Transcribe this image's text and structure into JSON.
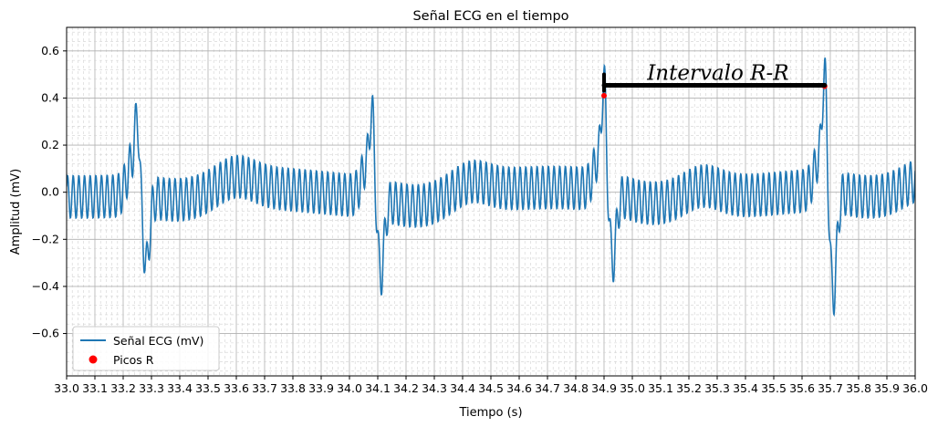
{
  "chart_data": {
    "type": "line",
    "title": "Señal ECG en el tiempo",
    "xlabel": "Tiempo (s)",
    "ylabel": "Amplitud (mV)",
    "xlim": [
      33.0,
      36.0
    ],
    "ylim": [
      -0.78,
      0.7
    ],
    "xticks": [
      "33.0",
      "33.1",
      "33.2",
      "33.3",
      "33.4",
      "33.5",
      "33.6",
      "33.7",
      "33.8",
      "33.9",
      "34.0",
      "34.1",
      "34.2",
      "34.3",
      "34.4",
      "34.5",
      "34.6",
      "34.7",
      "34.8",
      "34.9",
      "35.0",
      "35.1",
      "35.2",
      "35.3",
      "35.4",
      "35.5",
      "35.6",
      "35.7",
      "35.8",
      "35.9",
      "36.0"
    ],
    "yticks": [
      "0.6",
      "0.4",
      "0.2",
      "0.0",
      "−0.2",
      "−0.4",
      "−0.6"
    ],
    "ytick_values": [
      0.6,
      0.4,
      0.2,
      0.0,
      -0.2,
      -0.4,
      -0.6
    ],
    "grid": true,
    "minor_grid": true,
    "legend_position": "lower-left",
    "series": [
      {
        "name": "Señal ECG (mV)",
        "color": "#1f77b4",
        "kind": "line",
        "noise_amplitude_mv": 0.09,
        "noise_frequency_hz": 50,
        "beats": [
          {
            "t": 33.25,
            "peak": 0.27,
            "trough": -0.37
          },
          {
            "t": 34.08,
            "peak": 0.31,
            "trough": -0.4
          },
          {
            "t": 34.9,
            "peak": 0.41,
            "trough": -0.37
          },
          {
            "t": 35.68,
            "peak": 0.45,
            "trough": -0.52
          }
        ]
      },
      {
        "name": "Picos R",
        "color": "#ff0000",
        "kind": "marker",
        "x": [
          34.9,
          35.68
        ],
        "y": [
          0.41,
          0.45
        ]
      }
    ],
    "annotation": {
      "text": "Intervalo R-R",
      "from_x": 34.9,
      "to_x": 35.68,
      "y": 0.45
    }
  }
}
